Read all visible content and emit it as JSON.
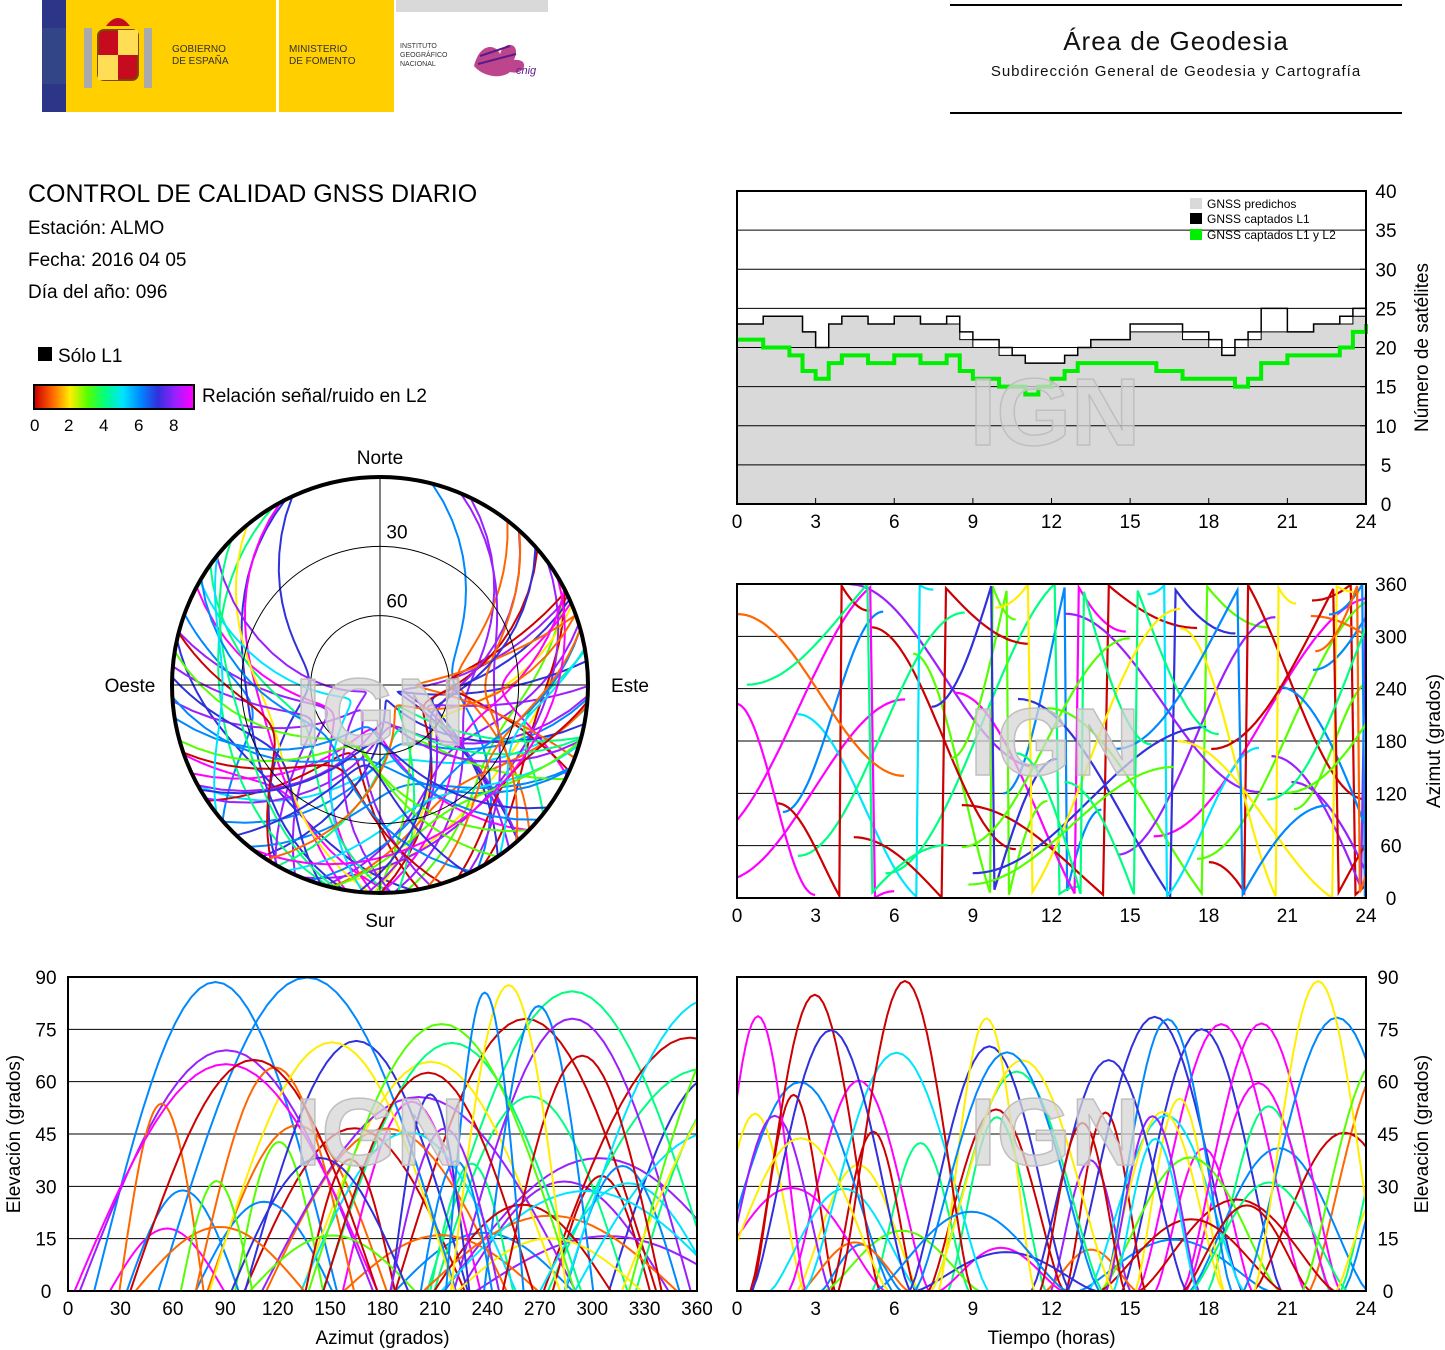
{
  "header": {
    "gov_line1": "GOBIERNO",
    "gov_line2": "DE ESPAÑA",
    "min_line1": "MINISTERIO",
    "min_line2": "DE FOMENTO",
    "inst_line1": "INSTITUTO",
    "inst_line2": "GEOGRÁFICO",
    "inst_line3": "NACIONAL",
    "cnig": "cnig",
    "area_title": "Área de Geodesia",
    "area_subtitle": "Subdirección General de Geodesia y Cartografía"
  },
  "report": {
    "title": "CONTROL DE CALIDAD GNSS DIARIO",
    "station": "Estación: ALMO",
    "date": "Fecha: 2016 04 05",
    "doy": "Día del año: 096"
  },
  "legend": {
    "l1_only": "Sólo L1",
    "snr_label": "Relación señal/ruido en L2",
    "snr_ticks": [
      "0",
      "2",
      "4",
      "6",
      "8"
    ],
    "colors": [
      "#cc0000",
      "#ff6600",
      "#ffee00",
      "#55ff00",
      "#00ff80",
      "#00e5ff",
      "#0088ff",
      "#3030dd",
      "#9a20ff",
      "#ff00ff"
    ]
  },
  "watermark": "IGN",
  "chart_data": [
    {
      "type": "area",
      "ylabel": "Número de satélites",
      "xlim": [
        0,
        24
      ],
      "ylim": [
        0,
        40
      ],
      "xticks": [
        "0",
        "3",
        "6",
        "9",
        "12",
        "15",
        "18",
        "21",
        "24"
      ],
      "yticks": [
        "0",
        "5",
        "10",
        "15",
        "20",
        "25",
        "30",
        "35",
        "40"
      ],
      "series": [
        {
          "name": "GNSS predichos",
          "color": "#d9d9d9",
          "x": [
            0,
            1,
            2,
            2.5,
            3,
            3.5,
            4,
            5,
            6,
            7,
            8,
            8.5,
            9,
            9.5,
            10,
            10.5,
            11,
            11.5,
            12,
            12.5,
            13,
            13.5,
            14,
            15,
            16,
            17,
            18,
            18.5,
            19,
            19.5,
            20,
            21,
            22,
            23,
            23.5,
            24
          ],
          "values": [
            23,
            24,
            24,
            22,
            20,
            23,
            24,
            23,
            24,
            23,
            23,
            21,
            20,
            20,
            19,
            19,
            18,
            18,
            18,
            19,
            20,
            21,
            21,
            22,
            22,
            21,
            20,
            19,
            20,
            21,
            22,
            22,
            23,
            23,
            24,
            25
          ]
        },
        {
          "name": "GNSS captados L1",
          "color": "#000000",
          "x": [
            0,
            1,
            2,
            2.5,
            3,
            3.5,
            4,
            5,
            6,
            7,
            8,
            8.5,
            9,
            9.5,
            10,
            10.5,
            11,
            11.5,
            12,
            12.5,
            13,
            13.5,
            14,
            15,
            16,
            17,
            18,
            18.5,
            19,
            19.5,
            20,
            21,
            22,
            23,
            23.5,
            24
          ],
          "values": [
            23,
            24,
            24,
            22,
            20,
            23,
            24,
            23,
            24,
            23,
            24,
            22,
            21,
            21,
            20,
            19,
            18,
            18,
            18,
            19,
            20,
            21,
            21,
            23,
            23,
            22,
            21,
            19,
            21,
            22,
            25,
            22,
            23,
            24,
            25,
            26
          ]
        },
        {
          "name": "GNSS captados L1 y L2",
          "color": "#00ee00",
          "x": [
            0,
            1,
            2,
            2.5,
            3,
            3.5,
            4,
            5,
            6,
            7,
            8,
            8.5,
            9,
            9.5,
            10,
            10.5,
            11,
            11.5,
            12,
            12.5,
            13,
            13.5,
            14,
            15,
            16,
            17,
            18,
            18.5,
            19,
            19.5,
            20,
            21,
            22,
            23,
            23.5,
            24
          ],
          "values": [
            21,
            20,
            19,
            17,
            16,
            18,
            19,
            18,
            19,
            18,
            19,
            17,
            16,
            16,
            15,
            15,
            14,
            15,
            16,
            17,
            18,
            18,
            18,
            18,
            17,
            16,
            16,
            16,
            15,
            16,
            18,
            19,
            19,
            20,
            22,
            23
          ]
        }
      ]
    },
    {
      "type": "scatter",
      "ylabel": "Azimut (grados)",
      "xlim": [
        0,
        24
      ],
      "ylim": [
        0,
        360
      ],
      "xticks": [
        "0",
        "3",
        "6",
        "9",
        "12",
        "15",
        "18",
        "21",
        "24"
      ],
      "yticks": [
        "0",
        "60",
        "120",
        "180",
        "240",
        "300",
        "360"
      ]
    },
    {
      "type": "scatter",
      "title": "",
      "labels": {
        "north": "Norte",
        "south": "Sur",
        "west": "Oeste",
        "east": "Este"
      },
      "rings": [
        "30",
        "60"
      ]
    },
    {
      "type": "scatter",
      "xlabel": "Azimut (grados)",
      "ylabel": "Elevación (grados)",
      "xlim": [
        0,
        360
      ],
      "ylim": [
        0,
        90
      ],
      "xticks": [
        "0",
        "30",
        "60",
        "90",
        "120",
        "150",
        "180",
        "210",
        "240",
        "270",
        "300",
        "330",
        "360"
      ],
      "yticks": [
        "0",
        "15",
        "30",
        "45",
        "60",
        "75",
        "90"
      ]
    },
    {
      "type": "scatter",
      "xlabel": "Tiempo (horas)",
      "ylabel": "Elevación (grados)",
      "xlim": [
        0,
        24
      ],
      "ylim": [
        0,
        90
      ],
      "xticks": [
        "0",
        "3",
        "6",
        "9",
        "12",
        "15",
        "18",
        "21",
        "24"
      ],
      "yticks": [
        "0",
        "15",
        "30",
        "45",
        "60",
        "75",
        "90"
      ]
    }
  ]
}
